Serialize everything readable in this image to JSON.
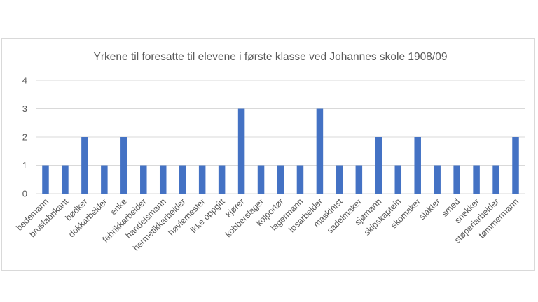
{
  "chart_data": {
    "type": "bar",
    "title": "Yrkene til foresatte til elevene i første klasse ved Johannes skole 1908/09",
    "xlabel": "",
    "ylabel": "",
    "ylim": [
      0,
      4
    ],
    "yticks": [
      "0",
      "1",
      "2",
      "3",
      "4"
    ],
    "grid": true,
    "legend": "none",
    "bar_color": "#4472c4",
    "grid_color": "#d9d9d9",
    "categories": [
      "bedemann",
      "brusfabrikant",
      "bødker",
      "dokkarbeider",
      "enke",
      "fabrikkarbeider",
      "handelsmann",
      "hermetikkarbeider",
      "høvlemester",
      "ikke oppgitt",
      "kjører",
      "kobberslager",
      "kolportør",
      "lagermann",
      "løsarbeider",
      "maskinist",
      "sadelmaker",
      "sjømann",
      "skipskaptein",
      "skomaker",
      "slakter",
      "smed",
      "snekker",
      "støperiarbeider",
      "tømmermann"
    ],
    "values": [
      1,
      1,
      2,
      1,
      2,
      1,
      1,
      1,
      1,
      1,
      3,
      1,
      1,
      1,
      3,
      1,
      1,
      2,
      1,
      2,
      1,
      1,
      1,
      1,
      2
    ]
  }
}
